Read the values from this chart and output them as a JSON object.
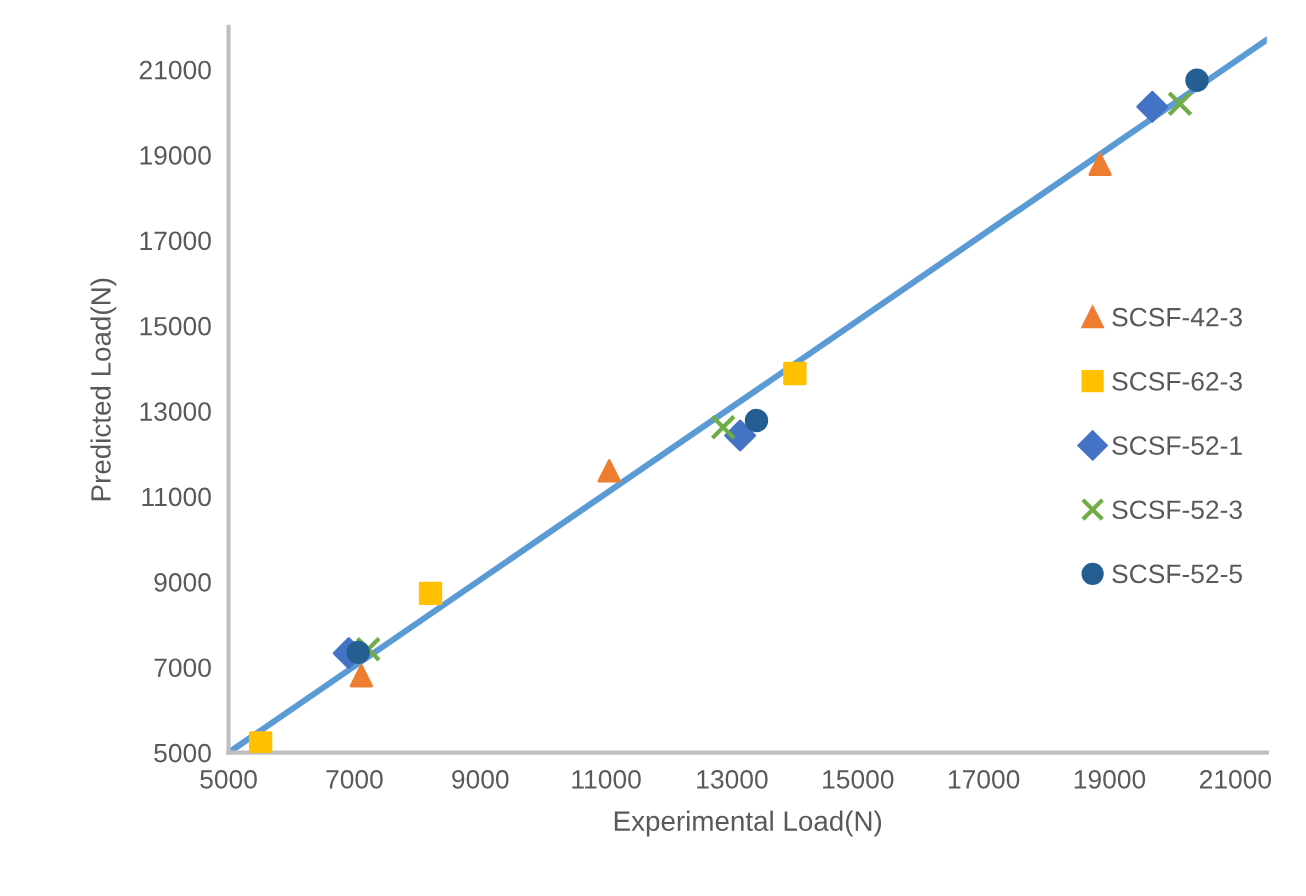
{
  "chart_data": {
    "type": "scatter",
    "xlabel": "Experimental Load(N)",
    "ylabel": "Predicted Load(N)",
    "xlim": [
      5000,
      21500
    ],
    "ylim": [
      5000,
      22000
    ],
    "xticks": [
      5000,
      7000,
      9000,
      11000,
      13000,
      15000,
      17000,
      19000,
      21000
    ],
    "yticks": [
      5000,
      7000,
      9000,
      11000,
      13000,
      15000,
      17000,
      19000,
      21000
    ],
    "grid": false,
    "legend": "right",
    "series": [
      {
        "type": "line",
        "color": "#5b9bd5",
        "x": [
          5000,
          21500
        ],
        "values": [
          5000,
          21700
        ],
        "marker": "none",
        "line_style": "solid"
      },
      {
        "name": "SCSF-42-3",
        "color": "#ed7d31",
        "marker": "triangle",
        "x": [
          7110,
          11050,
          18850
        ],
        "values": [
          6800,
          11600,
          18780
        ]
      },
      {
        "name": "SCSF-62-3",
        "color": "#ffc000",
        "marker": "square",
        "x": [
          5510,
          8210,
          14000
        ],
        "values": [
          5230,
          8730,
          13880
        ]
      },
      {
        "name": "SCSF-52-1",
        "color": "#4472c4",
        "marker": "diamond",
        "x": [
          6910,
          13130,
          19680
        ],
        "values": [
          7330,
          12430,
          20130
        ]
      },
      {
        "name": "SCSF-52-3",
        "color": "#70ad47",
        "marker": "cross",
        "x": [
          7220,
          12860,
          20120
        ],
        "values": [
          7420,
          12620,
          20200
        ]
      },
      {
        "name": "SCSF-52-5",
        "color": "#255e91",
        "marker": "circle",
        "x": [
          7060,
          13390,
          20390
        ],
        "values": [
          7350,
          12780,
          20750
        ]
      }
    ]
  }
}
